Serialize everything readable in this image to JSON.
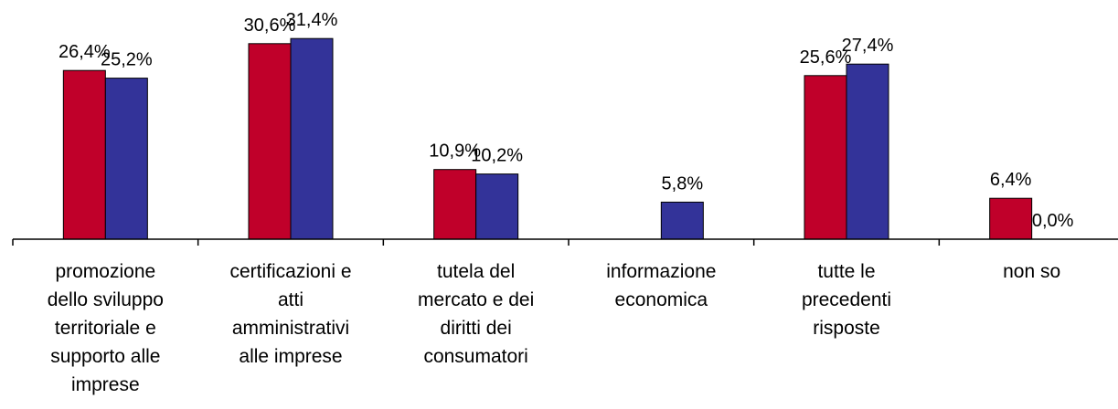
{
  "chart_data": {
    "type": "bar",
    "categories": [
      "promozione\ndello sviluppo\nterritoriale e\nsupporto alle\nimprese",
      "certificazioni e\natti\namministrativi\nalle imprese",
      "tutela del\nmercato e dei\ndiritti dei\nconsumatori",
      "informazione\neconomica",
      "tutte le\nprecedenti\nrisposte",
      "non so"
    ],
    "series": [
      {
        "color": "#C0002A",
        "values": [
          26.4,
          30.6,
          10.9,
          null,
          25.6,
          6.4
        ],
        "labels": [
          "26,4%",
          "30,6%",
          "10,9%",
          "",
          "25,6%",
          "6,4%"
        ]
      },
      {
        "color": "#333399",
        "values": [
          25.2,
          31.4,
          10.2,
          5.8,
          27.4,
          0.0
        ],
        "labels": [
          "25,2%",
          "31,4%",
          "10,2%",
          "5,8%",
          "27,4%",
          "0,0%"
        ]
      }
    ],
    "ylim": [
      0,
      34
    ],
    "grid": false,
    "legend": "none",
    "title": "",
    "xlabel": "",
    "ylabel": ""
  }
}
